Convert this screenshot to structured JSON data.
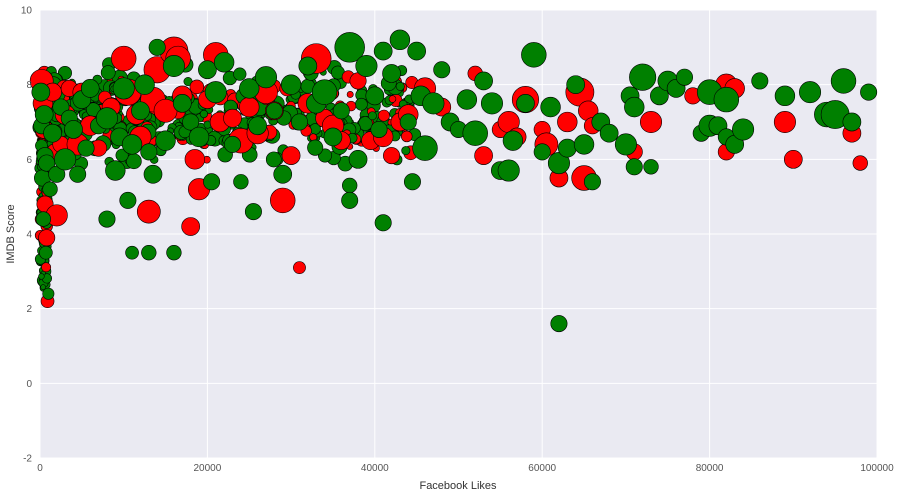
{
  "chart_data": {
    "type": "scatter",
    "title": "",
    "xlabel": "Facebook Likes",
    "ylabel": "IMDB Score",
    "xlim": [
      0,
      100000
    ],
    "ylim": [
      -2,
      10
    ],
    "x_ticks": [
      0,
      20000,
      40000,
      60000,
      80000,
      100000
    ],
    "y_ticks": [
      -2,
      0,
      2,
      4,
      6,
      8,
      10
    ],
    "x_tick_labels": [
      "0",
      "20000",
      "40000",
      "60000",
      "80000",
      "100000"
    ],
    "y_tick_labels": [
      "-2",
      "0",
      "2",
      "4",
      "6",
      "8",
      "10"
    ],
    "grid": true,
    "legend": "none",
    "colors": {
      "background": "#eaeaf2",
      "grid": "#ffffff",
      "red_series": "#ff0000",
      "green_series": "#008000",
      "marker_edge": "#000000",
      "tick_text": "#555555",
      "label_text": "#333333"
    },
    "series": [
      {
        "color": "red",
        "marker_size_scale": "relative",
        "points": [
          [
            200,
            8.1,
            1.8
          ],
          [
            350,
            7.5,
            1.4
          ],
          [
            500,
            6.8,
            1.2
          ],
          [
            600,
            4.8,
            1.0
          ],
          [
            800,
            3.9,
            1.0
          ],
          [
            900,
            2.2,
            0.6
          ],
          [
            1500,
            7.8,
            1.2
          ],
          [
            1800,
            6.2,
            1.0
          ],
          [
            2000,
            4.5,
            1.6
          ],
          [
            2500,
            6.4,
            1.0
          ],
          [
            3000,
            7.2,
            1.4
          ],
          [
            3500,
            7.9,
            1.0
          ],
          [
            4500,
            6.4,
            1.6
          ],
          [
            5000,
            7.8,
            1.2
          ],
          [
            6000,
            6.9,
            1.4
          ],
          [
            7000,
            6.3,
            1.0
          ],
          [
            8500,
            7.4,
            1.2
          ],
          [
            10000,
            8.7,
            2.0
          ],
          [
            10500,
            7.8,
            2.2
          ],
          [
            11500,
            7.2,
            1.4
          ],
          [
            12000,
            6.6,
            1.6
          ],
          [
            13000,
            4.6,
            1.8
          ],
          [
            13500,
            7.6,
            2.0
          ],
          [
            14000,
            8.4,
            2.2
          ],
          [
            15000,
            7.3,
            1.8
          ],
          [
            16000,
            8.9,
            2.4
          ],
          [
            16500,
            8.7,
            2.0
          ],
          [
            17000,
            7.7,
            1.4
          ],
          [
            18000,
            4.2,
            1.2
          ],
          [
            18500,
            6.0,
            1.4
          ],
          [
            19000,
            5.2,
            1.6
          ],
          [
            20000,
            7.6,
            1.2
          ],
          [
            21000,
            8.8,
            2.0
          ],
          [
            21500,
            7.0,
            1.4
          ],
          [
            23000,
            7.1,
            1.2
          ],
          [
            24000,
            6.5,
            2.0
          ],
          [
            25000,
            7.4,
            1.4
          ],
          [
            26000,
            6.7,
            1.6
          ],
          [
            27000,
            7.8,
            1.8
          ],
          [
            28000,
            7.3,
            1.2
          ],
          [
            29000,
            4.9,
            2.0
          ],
          [
            30000,
            6.1,
            1.2
          ],
          [
            31000,
            3.1,
            0.5
          ],
          [
            32000,
            7.5,
            1.4
          ],
          [
            33000,
            8.7,
            2.6
          ],
          [
            34000,
            7.1,
            1.2
          ],
          [
            35000,
            6.9,
            1.6
          ],
          [
            36000,
            6.5,
            1.2
          ],
          [
            38000,
            8.1,
            1.0
          ],
          [
            39500,
            6.5,
            1.2
          ],
          [
            41000,
            6.6,
            1.4
          ],
          [
            42000,
            6.1,
            1.0
          ],
          [
            43000,
            7.0,
            1.2
          ],
          [
            44000,
            7.2,
            1.4
          ],
          [
            46000,
            7.9,
            1.6
          ],
          [
            48000,
            7.4,
            1.2
          ],
          [
            52000,
            8.3,
            0.8
          ],
          [
            53000,
            6.1,
            1.2
          ],
          [
            55000,
            6.8,
            1.0
          ],
          [
            56000,
            7.0,
            1.6
          ],
          [
            57000,
            6.6,
            1.2
          ],
          [
            58000,
            7.6,
            2.2
          ],
          [
            60000,
            6.8,
            1.0
          ],
          [
            60500,
            6.4,
            1.8
          ],
          [
            62000,
            5.5,
            1.2
          ],
          [
            63000,
            7.0,
            1.4
          ],
          [
            64500,
            7.8,
            2.4
          ],
          [
            65000,
            5.5,
            2.0
          ],
          [
            65500,
            7.3,
            1.4
          ],
          [
            66000,
            6.9,
            1.0
          ],
          [
            71000,
            6.2,
            1.0
          ],
          [
            73000,
            7.0,
            1.6
          ],
          [
            78000,
            7.7,
            1.0
          ],
          [
            82000,
            8.0,
            1.6
          ],
          [
            82000,
            6.2,
            1.0
          ],
          [
            83000,
            7.9,
            1.4
          ],
          [
            89000,
            7.0,
            1.6
          ],
          [
            90000,
            6.0,
            1.2
          ],
          [
            97000,
            6.7,
            1.2
          ],
          [
            98000,
            5.9,
            0.8
          ]
        ]
      },
      {
        "color": "green",
        "marker_size_scale": "relative",
        "points": [
          [
            100,
            7.8,
            1.2
          ],
          [
            200,
            6.9,
            1.0
          ],
          [
            300,
            5.5,
            1.0
          ],
          [
            400,
            4.4,
            0.8
          ],
          [
            500,
            7.2,
            1.2
          ],
          [
            600,
            6.1,
            1.0
          ],
          [
            700,
            3.5,
            0.6
          ],
          [
            800,
            5.9,
            1.0
          ],
          [
            1000,
            2.4,
            0.4
          ],
          [
            1200,
            5.2,
            0.8
          ],
          [
            1500,
            6.7,
            1.2
          ],
          [
            2000,
            5.6,
            1.0
          ],
          [
            2500,
            7.4,
            1.0
          ],
          [
            3000,
            6.0,
            1.6
          ],
          [
            3500,
            7.1,
            1.0
          ],
          [
            4000,
            6.8,
            1.2
          ],
          [
            4500,
            5.6,
            1.0
          ],
          [
            5000,
            7.6,
            1.2
          ],
          [
            5500,
            6.3,
            1.0
          ],
          [
            6000,
            7.9,
            1.2
          ],
          [
            7000,
            6.9,
            1.0
          ],
          [
            8000,
            7.1,
            1.6
          ],
          [
            8000,
            4.4,
            1.0
          ],
          [
            9000,
            5.7,
            1.4
          ],
          [
            9500,
            6.6,
            1.2
          ],
          [
            10000,
            7.9,
            1.6
          ],
          [
            10500,
            4.9,
            1.0
          ],
          [
            11000,
            6.4,
            1.4
          ],
          [
            11000,
            3.5,
            0.6
          ],
          [
            12000,
            7.3,
            1.2
          ],
          [
            12500,
            8.0,
            1.4
          ],
          [
            13000,
            6.2,
            1.0
          ],
          [
            13000,
            3.5,
            0.8
          ],
          [
            13500,
            5.6,
            1.2
          ],
          [
            14000,
            9.0,
            1.0
          ],
          [
            15000,
            6.5,
            1.4
          ],
          [
            16000,
            8.5,
            1.6
          ],
          [
            16000,
            3.5,
            0.8
          ],
          [
            17000,
            7.5,
            1.2
          ],
          [
            18000,
            7.0,
            1.0
          ],
          [
            19000,
            6.6,
            1.4
          ],
          [
            20000,
            8.4,
            1.2
          ],
          [
            20500,
            5.4,
            1.0
          ],
          [
            21000,
            7.8,
            1.6
          ],
          [
            22000,
            8.6,
            1.4
          ],
          [
            23000,
            6.4,
            1.0
          ],
          [
            24000,
            5.4,
            0.8
          ],
          [
            25000,
            7.9,
            1.4
          ],
          [
            25500,
            4.6,
            1.0
          ],
          [
            26000,
            6.9,
            1.2
          ],
          [
            27000,
            8.2,
            1.6
          ],
          [
            28000,
            7.3,
            1.0
          ],
          [
            29000,
            5.6,
            1.2
          ],
          [
            30000,
            8.0,
            1.4
          ],
          [
            31000,
            7.0,
            1.0
          ],
          [
            32000,
            8.5,
            1.2
          ],
          [
            33000,
            7.5,
            1.4
          ],
          [
            34000,
            7.8,
            2.0
          ],
          [
            35000,
            6.6,
            1.2
          ],
          [
            36000,
            7.3,
            1.0
          ],
          [
            37000,
            9.0,
            2.6
          ],
          [
            37000,
            5.3,
            0.8
          ],
          [
            37000,
            4.9,
            1.0
          ],
          [
            38000,
            6.0,
            1.2
          ],
          [
            39000,
            8.5,
            1.6
          ],
          [
            40000,
            7.7,
            1.2
          ],
          [
            40500,
            6.8,
            1.0
          ],
          [
            41000,
            4.3,
            1.0
          ],
          [
            41000,
            8.9,
            1.2
          ],
          [
            42000,
            8.3,
            1.2
          ],
          [
            43000,
            9.2,
            1.4
          ],
          [
            44000,
            7.0,
            1.0
          ],
          [
            44500,
            5.4,
            1.0
          ],
          [
            45000,
            8.9,
            1.2
          ],
          [
            45500,
            7.7,
            1.4
          ],
          [
            46000,
            6.3,
            2.0
          ],
          [
            47000,
            7.5,
            1.6
          ],
          [
            48000,
            8.4,
            1.0
          ],
          [
            49000,
            7.0,
            1.2
          ],
          [
            50000,
            6.8,
            1.0
          ],
          [
            51000,
            7.6,
            1.4
          ],
          [
            52000,
            6.7,
            2.0
          ],
          [
            53000,
            8.1,
            1.2
          ],
          [
            54000,
            7.5,
            1.6
          ],
          [
            55000,
            5.7,
            1.2
          ],
          [
            56000,
            5.7,
            1.6
          ],
          [
            56500,
            6.5,
            1.4
          ],
          [
            58000,
            7.5,
            1.2
          ],
          [
            59000,
            8.8,
            2.0
          ],
          [
            60000,
            6.2,
            1.0
          ],
          [
            61000,
            7.4,
            1.4
          ],
          [
            62000,
            5.9,
            1.6
          ],
          [
            62000,
            1.6,
            1.0
          ],
          [
            63000,
            6.3,
            1.2
          ],
          [
            64000,
            8.0,
            1.2
          ],
          [
            65000,
            6.4,
            1.4
          ],
          [
            66000,
            5.4,
            1.0
          ],
          [
            67000,
            7.0,
            1.2
          ],
          [
            68000,
            6.7,
            1.2
          ],
          [
            70000,
            6.4,
            1.6
          ],
          [
            70500,
            7.7,
            1.2
          ],
          [
            71000,
            5.8,
            1.0
          ],
          [
            71000,
            7.4,
            1.4
          ],
          [
            72000,
            8.2,
            2.2
          ],
          [
            73000,
            5.8,
            0.8
          ],
          [
            74000,
            7.7,
            1.2
          ],
          [
            75000,
            8.1,
            1.4
          ],
          [
            76000,
            7.9,
            1.2
          ],
          [
            77000,
            8.2,
            1.0
          ],
          [
            79000,
            6.7,
            1.0
          ],
          [
            80000,
            6.9,
            1.6
          ],
          [
            80000,
            7.8,
            2.0
          ],
          [
            81000,
            6.9,
            1.2
          ],
          [
            82000,
            6.6,
            1.0
          ],
          [
            82000,
            7.6,
            2.0
          ],
          [
            83000,
            6.4,
            1.2
          ],
          [
            84000,
            6.8,
            1.6
          ],
          [
            86000,
            8.1,
            1.0
          ],
          [
            89000,
            7.7,
            1.4
          ],
          [
            92000,
            7.8,
            1.6
          ],
          [
            94000,
            7.2,
            2.0
          ],
          [
            95000,
            7.2,
            2.4
          ],
          [
            96000,
            8.1,
            2.0
          ],
          [
            97000,
            7.0,
            1.2
          ],
          [
            99000,
            7.8,
            1.0
          ]
        ]
      }
    ]
  }
}
